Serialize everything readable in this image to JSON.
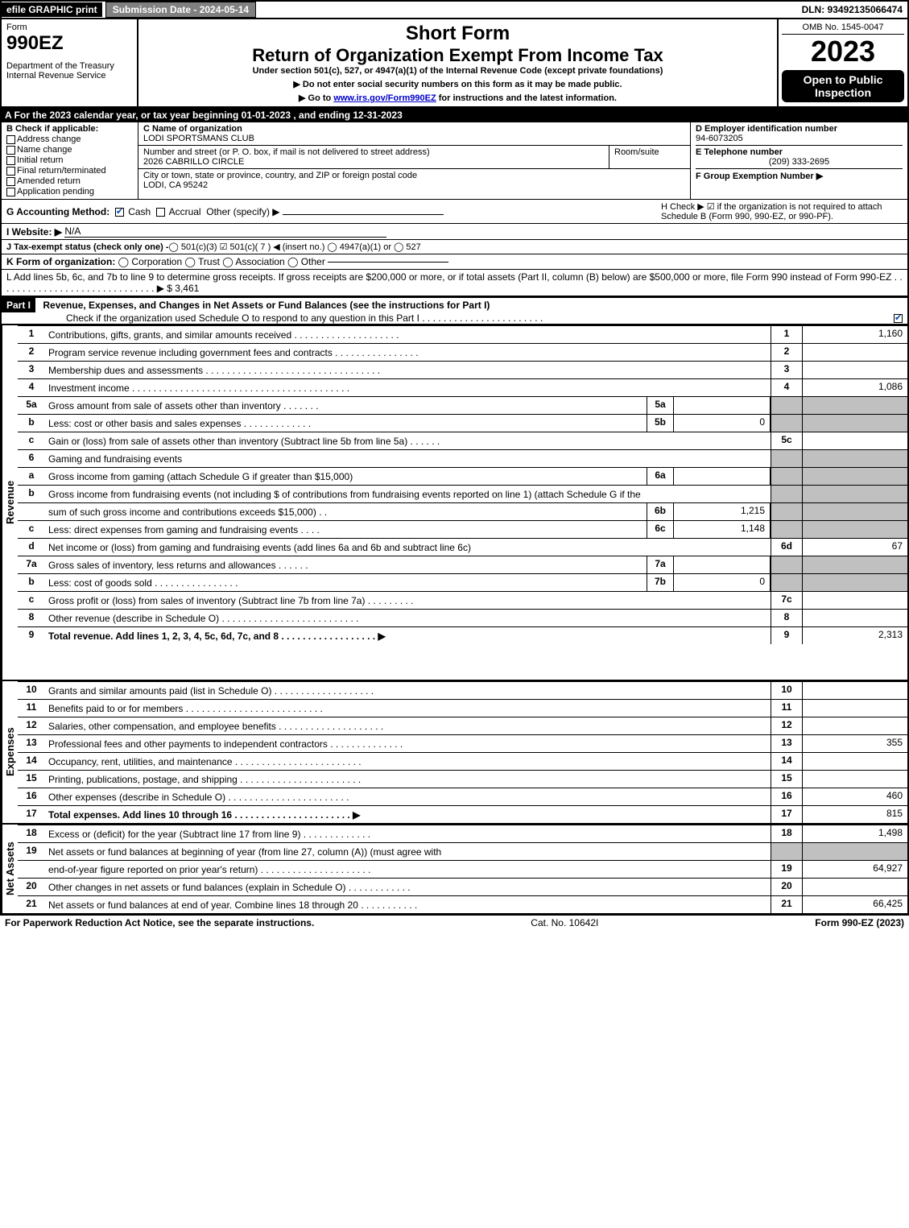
{
  "topbar": {
    "efile": "efile GRAPHIC print",
    "subdate": "Submission Date - 2024-05-14",
    "dln": "DLN: 93492135066474"
  },
  "header": {
    "form_label": "Form",
    "form_no": "990EZ",
    "dept": "Department of the Treasury\nInternal Revenue Service",
    "short_form": "Short Form",
    "title": "Return of Organization Exempt From Income Tax",
    "subtitle": "Under section 501(c), 527, or 4947(a)(1) of the Internal Revenue Code (except private foundations)",
    "note1": "▶ Do not enter social security numbers on this form as it may be made public.",
    "note2_pre": "▶ Go to ",
    "note2_link": "www.irs.gov/Form990EZ",
    "note2_post": " for instructions and the latest information.",
    "omb": "OMB No. 1545-0047",
    "year": "2023",
    "open": "Open to Public Inspection"
  },
  "sectionA": "A  For the 2023 calendar year, or tax year beginning 01-01-2023  , and ending 12-31-2023",
  "B": {
    "label": "B  Check if applicable:",
    "opts": [
      "Address change",
      "Name change",
      "Initial return",
      "Final return/terminated",
      "Amended return",
      "Application pending"
    ]
  },
  "C": {
    "name_lbl": "C Name of organization",
    "name": "LODI SPORTSMANS CLUB",
    "street_lbl": "Number and street (or P. O. box, if mail is not delivered to street address)",
    "street": "2026 CABRILLO CIRCLE",
    "room_lbl": "Room/suite",
    "city_lbl": "City or town, state or province, country, and ZIP or foreign postal code",
    "city": "LODI, CA  95242"
  },
  "D": {
    "ein_lbl": "D Employer identification number",
    "ein": "94-6073205",
    "tel_lbl": "E Telephone number",
    "tel": "(209) 333-2695",
    "grp_lbl": "F Group Exemption Number  ▶"
  },
  "G": {
    "label": "G Accounting Method:",
    "cash": "Cash",
    "accrual": "Accrual",
    "other": "Other (specify) ▶"
  },
  "H": {
    "text": "H   Check ▶  ☑  if the organization is not required to attach Schedule B (Form 990, 990-EZ, or 990-PF)."
  },
  "I": {
    "label": "I Website: ▶",
    "val": "N/A"
  },
  "J": {
    "label": "J Tax-exempt status (check only one) - ",
    "opts": "◯ 501(c)(3)  ☑ 501(c)( 7 ) ◀ (insert no.)  ◯ 4947(a)(1) or  ◯ 527"
  },
  "K": {
    "label": "K Form of organization:",
    "opts": "◯ Corporation   ◯ Trust   ◯ Association   ◯ Other"
  },
  "L": {
    "text": "L Add lines 5b, 6c, and 7b to line 9 to determine gross receipts. If gross receipts are $200,000 or more, or if total assets (Part II, column (B) below) are $500,000 or more, file Form 990 instead of Form 990-EZ  .  .  .  .  .  .  .  .  .  .  .  .  .  .  .  .  .  .  .  .  .  .  .  .  .  .  .  .  .  .  ▶ $ 3,461"
  },
  "part1": {
    "hdr": "Part I",
    "title": "Revenue, Expenses, and Changes in Net Assets or Fund Balances (see the instructions for Part I)",
    "sub": "Check if the organization used Schedule O to respond to any question in this Part I .  .  .  .  .  .  .  .  .  .  .  .  .  .  .  .  .  .  .  .  .  .  .",
    "checked": true
  },
  "sidetabs": {
    "rev": "Revenue",
    "exp": "Expenses",
    "na": "Net Assets"
  },
  "lines": [
    {
      "n": "1",
      "t": "Contributions, gifts, grants, and similar amounts received  .  .  .  .  .  .  .  .  .  .  .  .  .  .  .  .  .  .  .  .",
      "bn": "1",
      "bv": "1,160"
    },
    {
      "n": "2",
      "t": "Program service revenue including government fees and contracts  .  .  .  .  .  .  .  .  .  .  .  .  .  .  .  .",
      "bn": "2",
      "bv": ""
    },
    {
      "n": "3",
      "t": "Membership dues and assessments  .  .  .  .  .  .  .  .  .  .  .  .  .  .  .  .  .  .  .  .  .  .  .  .  .  .  .  .  .  .  .  .  .",
      "bn": "3",
      "bv": ""
    },
    {
      "n": "4",
      "t": "Investment income .  .  .  .  .  .  .  .  .  .  .  .  .  .  .  .  .  .  .  .  .  .  .  .  .  .  .  .  .  .  .  .  .  .  .  .  .  .  .  .  .",
      "bn": "4",
      "bv": "1,086"
    },
    {
      "n": "5a",
      "t": "Gross amount from sale of assets other than inventory  .  .  .  .  .  .  .",
      "sn": "5a",
      "sv": "",
      "grey": true
    },
    {
      "n": "b",
      "t": "Less: cost or other basis and sales expenses  .  .  .  .  .  .  .  .  .  .  .  .  .",
      "sn": "5b",
      "sv": "0",
      "grey": true
    },
    {
      "n": "c",
      "t": "Gain or (loss) from sale of assets other than inventory (Subtract line 5b from line 5a)  .  .  .  .  .  .",
      "bn": "5c",
      "bv": ""
    },
    {
      "n": "6",
      "t": "Gaming and fundraising events",
      "grey": true
    },
    {
      "n": "a",
      "t": "Gross income from gaming (attach Schedule G if greater than $15,000)",
      "sn": "6a",
      "sv": "",
      "grey": true
    },
    {
      "n": "b",
      "t": "Gross income from fundraising events (not including $                       of contributions from fundraising events reported on line 1) (attach Schedule G if the",
      "grey": true,
      "multi": true
    },
    {
      "n": "",
      "t": "sum of such gross income and contributions exceeds $15,000)     .   .",
      "sn": "6b",
      "sv": "1,215",
      "grey": true
    },
    {
      "n": "c",
      "t": "Less: direct expenses from gaming and fundraising events    .  .  .  .",
      "sn": "6c",
      "sv": "1,148",
      "grey": true
    },
    {
      "n": "d",
      "t": "Net income or (loss) from gaming and fundraising events (add lines 6a and 6b and subtract line 6c)",
      "bn": "6d",
      "bv": "67"
    },
    {
      "n": "7a",
      "t": "Gross sales of inventory, less returns and allowances  .  .  .  .  .  .",
      "sn": "7a",
      "sv": "",
      "grey": true
    },
    {
      "n": "b",
      "t": "Less: cost of goods sold        .  .  .  .  .  .  .  .  .  .  .  .  .  .  .  .",
      "sn": "7b",
      "sv": "0",
      "grey": true
    },
    {
      "n": "c",
      "t": "Gross profit or (loss) from sales of inventory (Subtract line 7b from line 7a)  .  .  .  .  .  .  .  .  .",
      "bn": "7c",
      "bv": ""
    },
    {
      "n": "8",
      "t": "Other revenue (describe in Schedule O) .  .  .  .  .  .  .  .  .  .  .  .  .  .  .  .  .  .  .  .  .  .  .  .  .  .",
      "bn": "8",
      "bv": ""
    },
    {
      "n": "9",
      "t": "Total revenue. Add lines 1, 2, 3, 4, 5c, 6d, 7c, and 8   .  .  .  .  .  .  .  .  .  .  .  .  .  .  .  .  .  .            ▶",
      "bn": "9",
      "bv": "2,313",
      "bold": true
    }
  ],
  "exp_lines": [
    {
      "n": "10",
      "t": "Grants and similar amounts paid (list in Schedule O)  .  .  .  .  .  .  .  .  .  .  .  .  .  .  .  .  .  .  .",
      "bn": "10",
      "bv": ""
    },
    {
      "n": "11",
      "t": "Benefits paid to or for members       .  .  .  .  .  .  .  .  .  .  .  .  .  .  .  .  .  .  .  .  .  .  .  .  .  .",
      "bn": "11",
      "bv": ""
    },
    {
      "n": "12",
      "t": "Salaries, other compensation, and employee benefits .  .  .  .  .  .  .  .  .  .  .  .  .  .  .  .  .  .  .  .",
      "bn": "12",
      "bv": ""
    },
    {
      "n": "13",
      "t": "Professional fees and other payments to independent contractors .  .  .  .  .  .  .  .  .  .  .  .  .  .",
      "bn": "13",
      "bv": "355"
    },
    {
      "n": "14",
      "t": "Occupancy, rent, utilities, and maintenance .  .  .  .  .  .  .  .  .  .  .  .  .  .  .  .  .  .  .  .  .  .  .  .",
      "bn": "14",
      "bv": ""
    },
    {
      "n": "15",
      "t": "Printing, publications, postage, and shipping .  .  .  .  .  .  .  .  .  .  .  .  .  .  .  .  .  .  .  .  .  .  .",
      "bn": "15",
      "bv": ""
    },
    {
      "n": "16",
      "t": "Other expenses (describe in Schedule O)     .  .  .  .  .  .  .  .  .  .  .  .  .  .  .  .  .  .  .  .  .  .  .",
      "bn": "16",
      "bv": "460"
    },
    {
      "n": "17",
      "t": "Total expenses. Add lines 10 through 16     .  .  .  .  .  .  .  .  .  .  .  .  .  .  .  .  .  .  .  .  .  .             ▶",
      "bn": "17",
      "bv": "815",
      "bold": true
    }
  ],
  "na_lines": [
    {
      "n": "18",
      "t": "Excess or (deficit) for the year (Subtract line 17 from line 9)        .  .  .  .  .  .  .  .  .  .  .  .  .",
      "bn": "18",
      "bv": "1,498"
    },
    {
      "n": "19",
      "t": "Net assets or fund balances at beginning of year (from line 27, column (A)) (must agree with",
      "grey": true,
      "multi": true
    },
    {
      "n": "",
      "t": "end-of-year figure reported on prior year's return) .  .  .  .  .  .  .  .  .  .  .  .  .  .  .  .  .  .  .  .  .",
      "bn": "19",
      "bv": "64,927"
    },
    {
      "n": "20",
      "t": "Other changes in net assets or fund balances (explain in Schedule O) .  .  .  .  .  .  .  .  .  .  .  .",
      "bn": "20",
      "bv": ""
    },
    {
      "n": "21",
      "t": "Net assets or fund balances at end of year. Combine lines 18 through 20 .  .  .  .  .  .  .  .  .  .  .",
      "bn": "21",
      "bv": "66,425"
    }
  ],
  "footer": {
    "left": "For Paperwork Reduction Act Notice, see the separate instructions.",
    "mid": "Cat. No. 10642I",
    "right": "Form 990-EZ (2023)"
  }
}
